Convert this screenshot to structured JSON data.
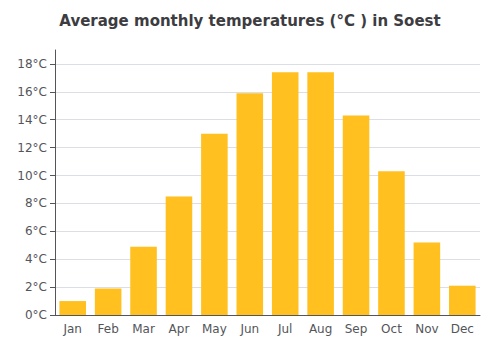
{
  "chart_data": {
    "type": "bar",
    "title": "Average monthly temperatures (°C ) in Soest",
    "categories": [
      "Jan",
      "Feb",
      "Mar",
      "Apr",
      "May",
      "Jun",
      "Jul",
      "Aug",
      "Sep",
      "Oct",
      "Nov",
      "Dec"
    ],
    "values": [
      1.0,
      1.9,
      4.9,
      8.5,
      13.0,
      15.9,
      17.4,
      17.4,
      14.3,
      10.3,
      5.2,
      2.1
    ],
    "color": "#FFC020",
    "ylim": [
      0,
      19
    ],
    "yticks": [
      {
        "value": 0,
        "label": "0°C"
      },
      {
        "value": 2,
        "label": "2°C"
      },
      {
        "value": 4,
        "label": "4°C"
      },
      {
        "value": 6,
        "label": "6°C"
      },
      {
        "value": 8,
        "label": "8°C"
      },
      {
        "value": 10,
        "label": "10°C"
      },
      {
        "value": 12,
        "label": "12°C"
      },
      {
        "value": 14,
        "label": "14°C"
      },
      {
        "value": 16,
        "label": "16°C"
      },
      {
        "value": 18,
        "label": "18°C"
      }
    ],
    "grid": true
  }
}
